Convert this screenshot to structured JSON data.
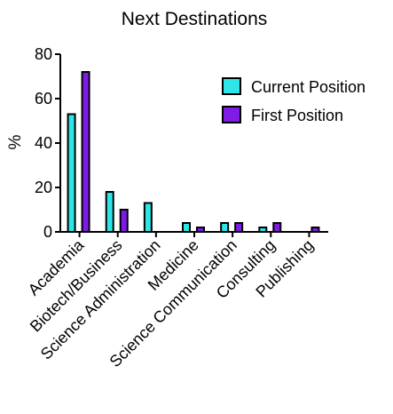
{
  "chart_data": {
    "type": "bar",
    "title": "Next Destinations",
    "xlabel": "",
    "ylabel": "%",
    "ylim": [
      0,
      80
    ],
    "yticks": [
      0,
      20,
      40,
      60,
      80
    ],
    "grid": false,
    "legend_position": "top-right",
    "categories": [
      "Academia",
      "Biotech/Business",
      "Science Administration",
      "Medicine",
      "Science Communication",
      "Consulting",
      "Publishing"
    ],
    "series": [
      {
        "name": "Current Position",
        "color": "#2ee6e6",
        "values": [
          53,
          18,
          13,
          4,
          4,
          2,
          0
        ]
      },
      {
        "name": "First Position",
        "color": "#7e1ce6",
        "values": [
          72,
          10,
          0,
          2,
          4,
          4,
          2
        ]
      }
    ]
  }
}
